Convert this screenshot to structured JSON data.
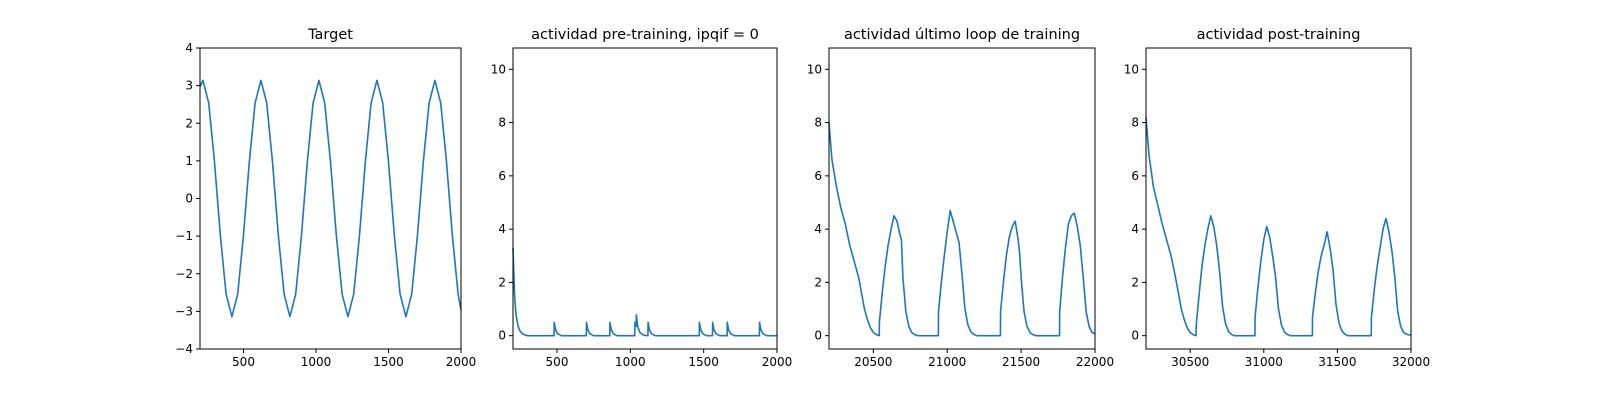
{
  "chart_data": [
    {
      "type": "line",
      "title": "Target",
      "xlim": [
        200,
        2000
      ],
      "ylim": [
        -4,
        4
      ],
      "xticks": [
        500,
        1000,
        1500,
        2000
      ],
      "yticks": [
        -4,
        -3,
        -2,
        -1,
        0,
        1,
        2,
        3,
        4
      ],
      "series_color": "#1f77b4",
      "series": [
        {
          "x": [
            200,
            220,
            260,
            300,
            340,
            380,
            420,
            460,
            500,
            540,
            580,
            620,
            660,
            700,
            740,
            780,
            820,
            860,
            900,
            940,
            980,
            1020,
            1060,
            1100,
            1140,
            1180,
            1220,
            1260,
            1300,
            1340,
            1380,
            1420,
            1460,
            1500,
            1540,
            1580,
            1620,
            1660,
            1700,
            1740,
            1780,
            1820,
            1860,
            1900,
            1940,
            1980,
            2000
          ],
          "y": [
            2.97,
            3.14,
            2.54,
            0.97,
            -0.97,
            -2.54,
            -3.14,
            -2.54,
            -0.97,
            0.97,
            2.54,
            3.14,
            2.54,
            0.97,
            -0.97,
            -2.54,
            -3.14,
            -2.54,
            -0.97,
            0.97,
            2.54,
            3.14,
            2.54,
            0.97,
            -0.97,
            -2.54,
            -3.14,
            -2.54,
            -0.97,
            0.97,
            2.54,
            3.14,
            2.54,
            0.97,
            -0.97,
            -2.54,
            -3.14,
            -2.54,
            -0.97,
            0.97,
            2.54,
            3.14,
            2.54,
            0.97,
            -0.97,
            -2.54,
            -2.97
          ]
        }
      ]
    },
    {
      "type": "line",
      "title": "actividad pre-training, ipqif = 0",
      "xlim": [
        200,
        2000
      ],
      "ylim": [
        -0.5,
        10.8
      ],
      "xticks": [
        500,
        1000,
        1500,
        2000
      ],
      "yticks": [
        0,
        2,
        4,
        6,
        8,
        10
      ],
      "series_color": "#1f77b4",
      "series": [
        {
          "x": [
            200,
            210,
            220,
            235,
            250,
            270,
            300,
            480,
            481,
            490,
            505,
            530,
            700,
            701,
            710,
            725,
            750,
            860,
            861,
            870,
            885,
            910,
            1030,
            1031,
            1040,
            1041,
            1050,
            1065,
            1090,
            1120,
            1121,
            1130,
            1145,
            1170,
            1470,
            1471,
            1480,
            1495,
            1520,
            1560,
            1561,
            1570,
            1585,
            1610,
            1660,
            1661,
            1670,
            1685,
            1710,
            1880,
            1881,
            1890,
            1905,
            1930,
            2000
          ],
          "y": [
            3.3,
            1.6,
            0.8,
            0.35,
            0.15,
            0.05,
            0.0,
            0.0,
            0.5,
            0.22,
            0.07,
            0.0,
            0.0,
            0.5,
            0.22,
            0.07,
            0.0,
            0.0,
            0.5,
            0.22,
            0.07,
            0.0,
            0.0,
            0.5,
            0.35,
            0.78,
            0.35,
            0.12,
            0.02,
            0.0,
            0.5,
            0.22,
            0.07,
            0.0,
            0.0,
            0.5,
            0.22,
            0.07,
            0.0,
            0.0,
            0.5,
            0.22,
            0.07,
            0.0,
            0.0,
            0.5,
            0.22,
            0.07,
            0.0,
            0.0,
            0.5,
            0.22,
            0.07,
            0.0,
            0.0
          ]
        }
      ]
    },
    {
      "type": "line",
      "title": "actividad último loop de training",
      "xlim": [
        20200,
        22000
      ],
      "ylim": [
        -0.5,
        10.8
      ],
      "xticks": [
        20500,
        21000,
        21500,
        22000
      ],
      "yticks": [
        0,
        2,
        4,
        6,
        8,
        10
      ],
      "series_color": "#1f77b4",
      "series": [
        {
          "x": [
            20200,
            20220,
            20250,
            20280,
            20310,
            20340,
            20370,
            20400,
            20420,
            20440,
            20460,
            20480,
            20500,
            20520,
            20540,
            20541,
            20560,
            20580,
            20600,
            20620,
            20640,
            20660,
            20680,
            20690,
            20700,
            20720,
            20740,
            20760,
            20780,
            20800,
            20820,
            20940,
            20941,
            20960,
            20980,
            21000,
            21020,
            21040,
            21060,
            21080,
            21100,
            21120,
            21140,
            21160,
            21180,
            21200,
            21220,
            21240,
            21360,
            21361,
            21380,
            21400,
            21420,
            21440,
            21460,
            21480,
            21490,
            21500,
            21520,
            21540,
            21560,
            21580,
            21600,
            21620,
            21640,
            21760,
            21761,
            21780,
            21800,
            21820,
            21840,
            21860,
            21880,
            21900,
            21920,
            21940,
            21960,
            21980,
            22000
          ],
          "y": [
            8.0,
            6.6,
            5.6,
            4.8,
            4.2,
            3.4,
            2.8,
            2.2,
            1.6,
            1.0,
            0.6,
            0.3,
            0.12,
            0.04,
            0.0,
            0.5,
            1.6,
            2.6,
            3.4,
            4.0,
            4.5,
            4.3,
            3.8,
            3.6,
            2.2,
            0.9,
            0.35,
            0.12,
            0.04,
            0.0,
            0.0,
            0.0,
            0.9,
            2.0,
            3.0,
            3.9,
            4.7,
            4.3,
            3.9,
            3.5,
            2.3,
            1.0,
            0.4,
            0.14,
            0.05,
            0.0,
            0.0,
            0.0,
            0.0,
            0.9,
            2.0,
            3.0,
            3.7,
            4.1,
            4.3,
            3.6,
            3.1,
            2.2,
            0.9,
            0.35,
            0.12,
            0.04,
            0.0,
            0.0,
            0.0,
            0.0,
            0.9,
            2.2,
            3.3,
            4.2,
            4.5,
            4.6,
            4.1,
            3.4,
            2.2,
            0.9,
            0.35,
            0.12,
            0.08
          ]
        }
      ]
    },
    {
      "type": "line",
      "title": "actividad post-training",
      "xlim": [
        30200,
        32000
      ],
      "ylim": [
        -0.5,
        10.8
      ],
      "xticks": [
        30500,
        31000,
        31500,
        32000
      ],
      "yticks": [
        0,
        2,
        4,
        6,
        8,
        10
      ],
      "series_color": "#1f77b4",
      "series": [
        {
          "x": [
            30200,
            30220,
            30250,
            30280,
            30310,
            30340,
            30370,
            30400,
            30420,
            30440,
            30460,
            30480,
            30500,
            30520,
            30540,
            30541,
            30560,
            30580,
            30600,
            30620,
            30640,
            30660,
            30680,
            30700,
            30720,
            30740,
            30760,
            30780,
            30800,
            30820,
            30940,
            30941,
            30960,
            30980,
            31000,
            31020,
            31040,
            31060,
            31080,
            31100,
            31120,
            31140,
            31160,
            31180,
            31200,
            31220,
            31330,
            31331,
            31350,
            31370,
            31390,
            31410,
            31430,
            31450,
            31470,
            31490,
            31510,
            31530,
            31550,
            31570,
            31590,
            31610,
            31730,
            31731,
            31750,
            31770,
            31790,
            31810,
            31830,
            31850,
            31870,
            31890,
            31910,
            31930,
            31950,
            31970,
            32000
          ],
          "y": [
            8.2,
            6.8,
            5.6,
            4.9,
            4.2,
            3.6,
            3.0,
            2.2,
            1.6,
            1.0,
            0.6,
            0.3,
            0.12,
            0.04,
            0.0,
            0.4,
            1.5,
            2.6,
            3.4,
            4.0,
            4.5,
            4.1,
            3.4,
            2.4,
            1.1,
            0.45,
            0.16,
            0.05,
            0.0,
            0.0,
            0.0,
            0.7,
            1.8,
            2.8,
            3.6,
            4.1,
            3.7,
            3.0,
            2.2,
            1.0,
            0.4,
            0.14,
            0.05,
            0.0,
            0.0,
            0.0,
            0.0,
            0.7,
            1.6,
            2.4,
            3.0,
            3.4,
            3.9,
            3.3,
            2.5,
            1.2,
            0.5,
            0.18,
            0.06,
            0.0,
            0.0,
            0.0,
            0.0,
            0.7,
            1.7,
            2.6,
            3.3,
            4.0,
            4.4,
            3.9,
            3.2,
            2.2,
            0.9,
            0.35,
            0.12,
            0.05,
            0.02
          ]
        }
      ]
    }
  ]
}
